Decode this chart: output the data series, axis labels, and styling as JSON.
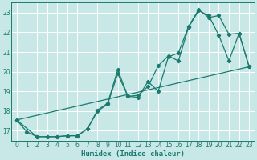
{
  "xlabel": "Humidex (Indice chaleur)",
  "bg_color": "#c8e8e8",
  "grid_color": "#ffffff",
  "line_color": "#1a7a6e",
  "xlim": [
    -0.5,
    23.5
  ],
  "ylim": [
    16.5,
    23.5
  ],
  "yticks": [
    17,
    18,
    19,
    20,
    21,
    22,
    23
  ],
  "xticks": [
    0,
    1,
    2,
    3,
    4,
    5,
    6,
    7,
    8,
    9,
    10,
    11,
    12,
    13,
    14,
    15,
    16,
    17,
    18,
    19,
    20,
    21,
    22,
    23
  ],
  "line1_x": [
    0,
    1,
    2,
    3,
    4,
    5,
    6,
    7,
    8,
    9,
    10,
    11,
    12,
    13,
    14,
    15,
    16,
    17,
    18,
    19,
    20,
    21,
    22,
    23
  ],
  "line1_y": [
    17.55,
    16.95,
    16.7,
    16.7,
    16.7,
    16.75,
    16.75,
    17.1,
    18.05,
    18.4,
    20.1,
    18.75,
    18.8,
    19.25,
    20.3,
    20.8,
    20.55,
    22.25,
    23.1,
    22.85,
    21.85,
    20.55,
    21.95,
    20.25
  ],
  "line2_x": [
    0,
    2,
    3,
    4,
    5,
    6,
    7,
    8,
    9,
    10,
    11,
    12,
    13,
    14,
    15,
    16,
    17,
    18,
    19,
    20,
    21,
    22,
    23
  ],
  "line2_y": [
    17.55,
    16.7,
    16.7,
    16.7,
    16.75,
    16.75,
    17.1,
    18.0,
    18.35,
    19.9,
    18.75,
    18.7,
    19.5,
    19.0,
    20.75,
    20.95,
    22.3,
    23.15,
    22.75,
    22.85,
    21.9,
    21.95,
    20.25
  ],
  "line3_x": [
    0,
    23
  ],
  "line3_y": [
    17.55,
    20.25
  ]
}
